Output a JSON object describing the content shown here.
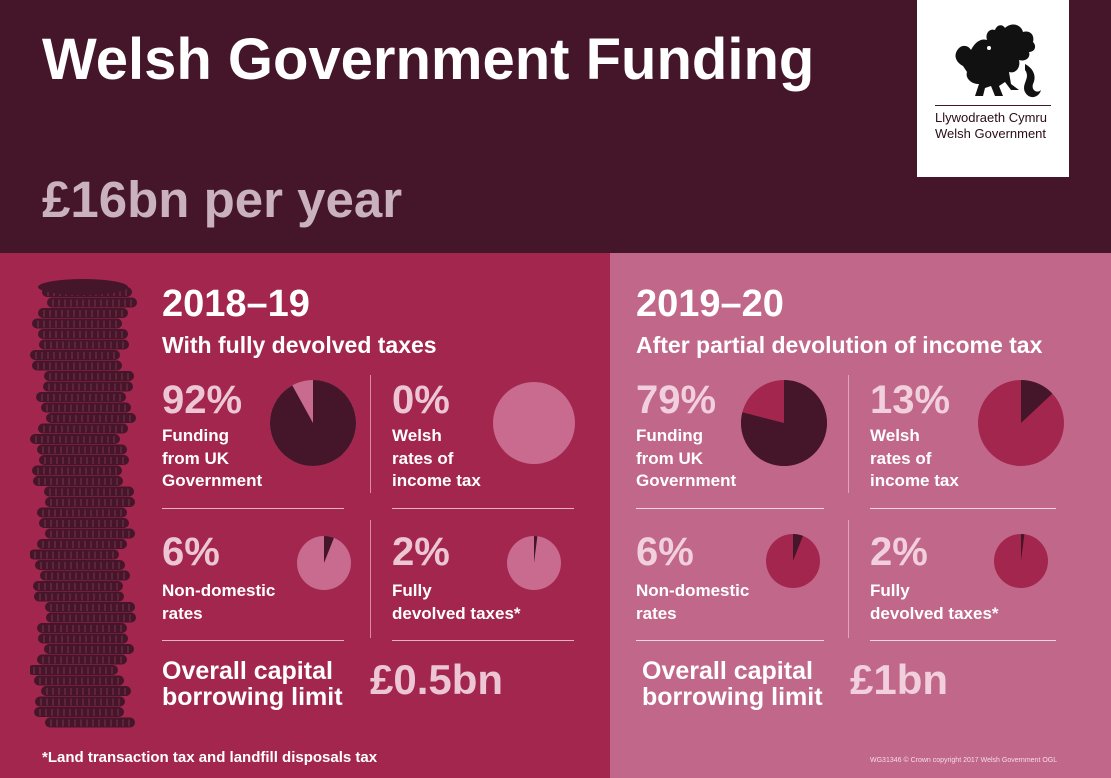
{
  "header": {
    "title": "Welsh Government Funding",
    "subtitle": "£16bn per year",
    "logo": {
      "line1": "Llywodraeth Cymru",
      "line2": "Welsh Government",
      "emblem": "welsh-dragon-icon"
    }
  },
  "colors": {
    "header_bg": "#45162a",
    "left_panel_bg": "#a3264f",
    "right_panel_bg": "#c1678a",
    "pie_dark": "#45162a",
    "pie_light_left": "#c86b8e",
    "pie_mid_right": "#a3264f"
  },
  "left": {
    "year": "2018–19",
    "scenario": "With fully devolved taxes",
    "items": [
      {
        "pct": "92%",
        "share": 0.92,
        "label": [
          "Funding",
          "from UK",
          "Government"
        ]
      },
      {
        "pct": "0%",
        "share": 0.0,
        "label": [
          "Welsh",
          "rates of",
          "income tax"
        ]
      },
      {
        "pct": "6%",
        "share": 0.06,
        "label": [
          "Non-domestic",
          "rates"
        ]
      },
      {
        "pct": "2%",
        "share": 0.02,
        "label": [
          "Fully",
          "devolved taxes*"
        ]
      }
    ],
    "borrowing": {
      "label": [
        "Overall capital",
        "borrowing limit"
      ],
      "value": "£0.5bn"
    }
  },
  "right": {
    "year": "2019–20",
    "scenario": "After partial devolution of income tax",
    "items": [
      {
        "pct": "79%",
        "share": 0.79,
        "label": [
          "Funding",
          "from UK",
          "Government"
        ]
      },
      {
        "pct": "13%",
        "share": 0.13,
        "label": [
          "Welsh",
          "rates of",
          "income tax"
        ]
      },
      {
        "pct": "6%",
        "share": 0.06,
        "label": [
          "Non-domestic",
          "rates"
        ]
      },
      {
        "pct": "2%",
        "share": 0.02,
        "label": [
          "Fully",
          "devolved taxes*"
        ]
      }
    ],
    "borrowing": {
      "label": [
        "Overall capital",
        "borrowing limit"
      ],
      "value": "£1bn"
    }
  },
  "footnote": "*Land transaction tax and landfill disposals tax",
  "credit": "WG31346   © Crown copyright 2017   Welsh Government   OGL",
  "decor": {
    "coins_icon": "coin-stack-icon"
  }
}
